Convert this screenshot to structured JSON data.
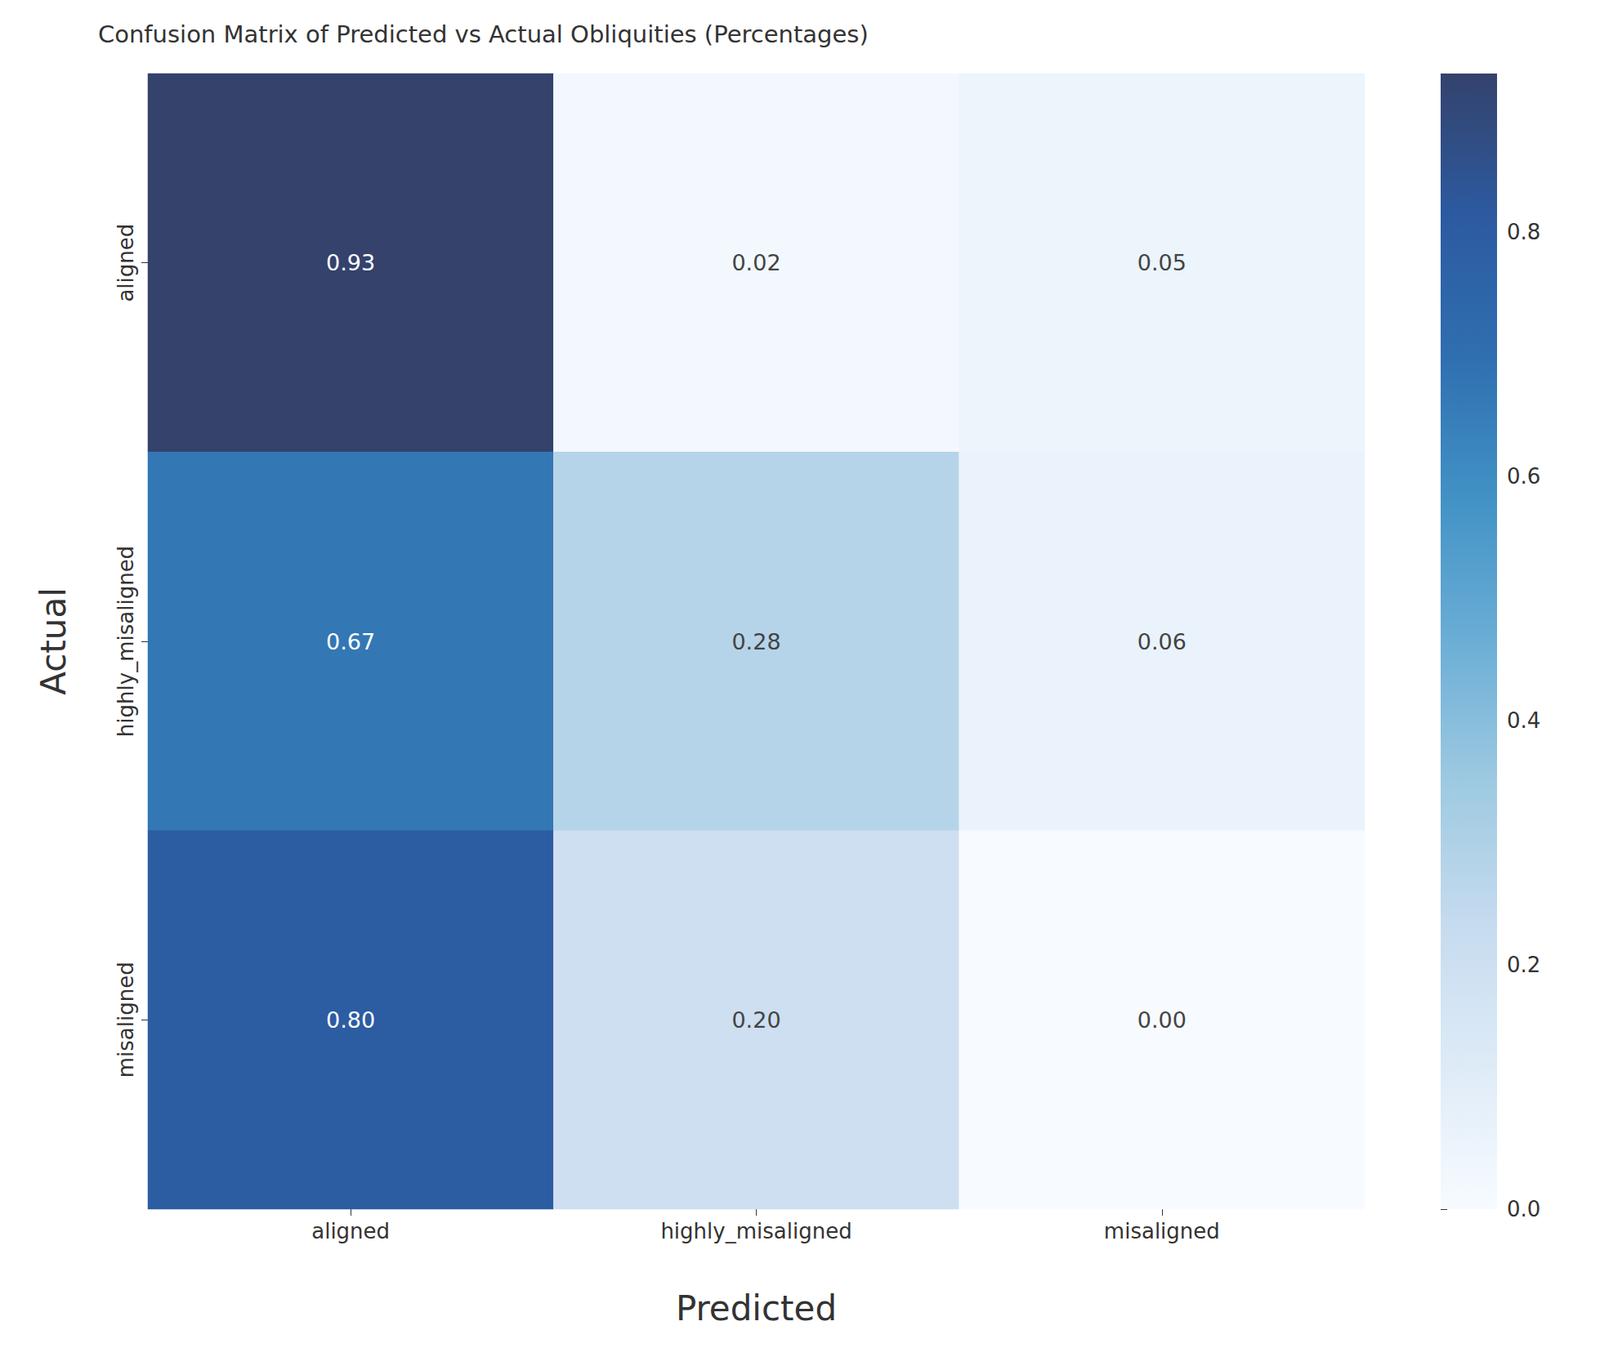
{
  "chart_data": {
    "type": "heatmap",
    "title": "Confusion Matrix of Predicted vs Actual Obliquities (Percentages)",
    "x_label": "Predicted",
    "y_label": "Actual",
    "x_categories": [
      "aligned",
      "highly_misaligned",
      "misaligned"
    ],
    "y_categories": [
      "aligned",
      "highly_misaligned",
      "misaligned"
    ],
    "values": [
      [
        0.93,
        0.02,
        0.05
      ],
      [
        0.67,
        0.28,
        0.06
      ],
      [
        0.8,
        0.2,
        0.0
      ]
    ],
    "value_labels": [
      [
        "0.93",
        "0.02",
        "0.05"
      ],
      [
        "0.67",
        "0.28",
        "0.06"
      ],
      [
        "0.80",
        "0.20",
        "0.00"
      ]
    ],
    "data_labels": true,
    "colorbar": {
      "range": [
        0,
        0.93
      ],
      "ticks": [
        {
          "value": 0,
          "label": "0.0"
        },
        {
          "value": 0.2,
          "label": "0.2"
        },
        {
          "value": 0.4,
          "label": "0.4"
        },
        {
          "value": 0.6,
          "label": "0.6"
        },
        {
          "value": 0.8,
          "label": "0.8"
        }
      ]
    }
  }
}
